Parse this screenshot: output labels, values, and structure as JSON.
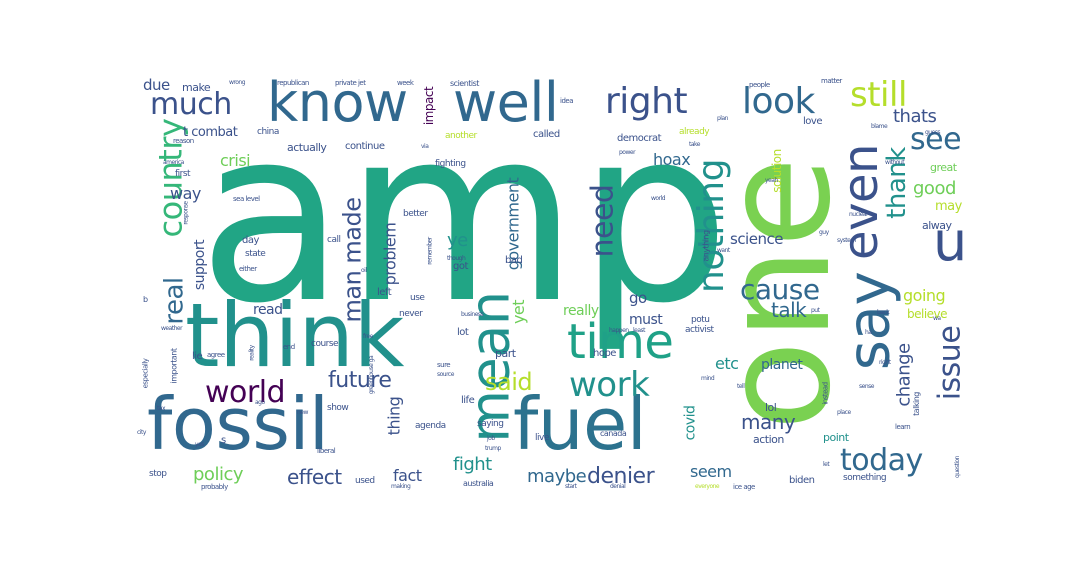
{
  "word_cloud": {
    "colors": [
      "#440154",
      "#3b528b",
      "#31688e",
      "#21918c",
      "#1fa187",
      "#35b779",
      "#6ece58",
      "#b5de2b",
      "#fde725"
    ],
    "words": {
      "amp": "amp",
      "one": "one",
      "think": "think",
      "fossil": "fossil",
      "fuel": "fuel",
      "know": "know",
      "well": "well",
      "mean": "mean",
      "say": "say",
      "even": "even",
      "u": "u",
      "time": "time",
      "right": "right",
      "look": "look",
      "much": "much",
      "country": "country",
      "world": "world",
      "work": "work",
      "issue": "issue",
      "today": "today",
      "nothing": "nothing",
      "see": "see",
      "thank": "thank",
      "still": "still",
      "cause": "cause",
      "need": "need",
      "man_made": "man made",
      "real": "real",
      "said": "said",
      "future": "future",
      "effect": "effect",
      "policy": "policy",
      "denier": "denier",
      "fight": "fight",
      "maybe": "maybe",
      "fact": "fact",
      "many": "many",
      "etc": "etc",
      "talk": "talk",
      "planet": "planet",
      "change": "change",
      "good": "good",
      "going": "going",
      "thats": "thats",
      "hoax": "hoax",
      "government": "government",
      "science": "science",
      "problem": "problem",
      "crisi": "crisi",
      "way": "way",
      "due": "due",
      "support": "support",
      "ye": "ye",
      "yet": "yet",
      "covid": "covid",
      "seem": "seem",
      "thing": "thing",
      "go": "go",
      "must": "must",
      "read": "read",
      "really": "really",
      "impact": "impact",
      "solution": "solution",
      "may": "may",
      "believe": "believe",
      "alway": "alway",
      "great": "great",
      "t_combat": "t combat",
      "make": "make",
      "actually": "actually",
      "continue": "continue",
      "called": "called",
      "democrat": "democrat",
      "love": "love",
      "lol": "lol",
      "action": "action",
      "point": "point",
      "part": "part",
      "hope": "hope",
      "lie": "lie",
      "day": "day",
      "state": "state",
      "call": "call",
      "better": "better",
      "fighting": "fighting",
      "everything": "everything",
      "got": "got",
      "bad": "bad",
      "year_ago": "year ago",
      "left": "left",
      "use": "use",
      "never": "never",
      "lot": "lot",
      "life": "life",
      "saying": "saying",
      "live": "live",
      "used": "used",
      "stop": "stop",
      "biden": "biden",
      "something": "something",
      "course": "course",
      "show": "show",
      "agenda": "agenda",
      "australia": "australia",
      "canada": "canada",
      "potu": "potu",
      "first": "first",
      "china": "china",
      "another": "another",
      "already": "already",
      "scientist": "scientist",
      "republican": "republican",
      "private_jet": "private jet",
      "week": "week",
      "idea": "idea",
      "reason": "reason",
      "people": "people",
      "matter": "matter",
      "sea_level": "sea level",
      "wrong": "wrong",
      "important": "important",
      "especially": "especially",
      "activist": "activist",
      "learn": "learn",
      "talking": "talking",
      "instead": "instead",
      "either": "either",
      "probably": "probably",
      "ice_age": "ice age",
      "everyone": "everyone",
      "denial": "denial",
      "making": "making",
      "liberal": "liberal",
      "start": "start",
      "agree": "agree",
      "end": "end",
      "sure": "sure",
      "source": "source",
      "greenhouse_ga": "greenhouse ga",
      "business": "business",
      "though": "though",
      "happen": "happen",
      "least": "least",
      "anything": "anything",
      "plan": "plan",
      "power": "power",
      "take": "take",
      "yeah": "yeah",
      "without": "without",
      "blame": "blame",
      "place": "place",
      "question": "question",
      "b": "b",
      "america": "america",
      "s": "s",
      "reality": "reality",
      "job": "job",
      "trump": "trump",
      "tell": "tell",
      "back": "back",
      "put": "put",
      "want": "want",
      "let": "let",
      "guy": "guy",
      "ha": "ha",
      "via": "via",
      "sense": "sense",
      "right_small": "right",
      "wa": "wa",
      "city": "city",
      "ago": "ago",
      "yes": "yes",
      "tax": "tax",
      "new": "new",
      "oil": "oil",
      "weather": "weather",
      "mind": "mind",
      "guess": "guess",
      "world_small": "world",
      "free": "free",
      "system": "system",
      "nuclear": "nuclear",
      "response": "response",
      "remember": "remember"
    }
  }
}
